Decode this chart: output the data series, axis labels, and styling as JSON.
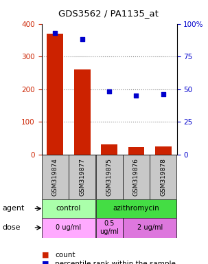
{
  "title": "GDS3562 / PA1135_at",
  "samples": [
    "GSM319874",
    "GSM319877",
    "GSM319875",
    "GSM319876",
    "GSM319878"
  ],
  "counts": [
    370,
    260,
    30,
    22,
    25
  ],
  "percentiles": [
    93,
    88,
    48,
    45,
    46
  ],
  "agent_groups": [
    {
      "label": "control",
      "start": 0,
      "end": 2,
      "color": "#AAFFAA"
    },
    {
      "label": "azithromycin",
      "start": 2,
      "end": 5,
      "color": "#44DD44"
    }
  ],
  "dose_groups": [
    {
      "label": "0 ug/ml",
      "start": 0,
      "end": 2,
      "color": "#FFAAFF"
    },
    {
      "label": "0.5\nug/ml",
      "start": 2,
      "end": 3,
      "color": "#EE88EE"
    },
    {
      "label": "2 ug/ml",
      "start": 3,
      "end": 5,
      "color": "#DD77DD"
    }
  ],
  "bar_color": "#CC2200",
  "dot_color": "#0000CC",
  "left_ylim": [
    0,
    400
  ],
  "right_ylim": [
    0,
    100
  ],
  "left_yticks": [
    0,
    100,
    200,
    300,
    400
  ],
  "right_yticks": [
    0,
    25,
    50,
    75,
    100
  ],
  "right_yticklabels": [
    "0",
    "25",
    "50",
    "75",
    "100%"
  ],
  "background_color": "#ffffff",
  "sample_box_color": "#C8C8C8",
  "label_agent": "agent",
  "label_dose": "dose"
}
